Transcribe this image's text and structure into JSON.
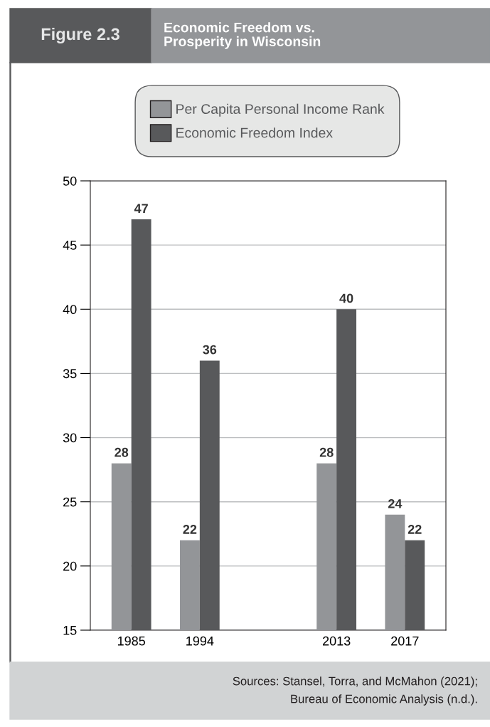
{
  "chart_data": {
    "type": "bar",
    "title": "Economic Freedom vs.\nProsperity in Wisconsin",
    "subtitle": "Figure 2.3",
    "categories": [
      "1985",
      "1994",
      null,
      "2013",
      "2017"
    ],
    "series": [
      {
        "name": "Per Capita Personal Income Rank",
        "color": "#939598",
        "values": [
          28,
          22,
          null,
          28,
          24
        ]
      },
      {
        "name": "Economic Freedom Index",
        "color": "#58595b",
        "values": [
          47,
          36,
          null,
          40,
          22
        ]
      }
    ],
    "ylim": [
      15,
      50
    ],
    "yticks": [
      15,
      20,
      25,
      30,
      35,
      40,
      45,
      50
    ],
    "grid": "y",
    "legend": "top",
    "data_labels": true,
    "annotations": [
      "Sources: Stansel, Torra, and McMahon (2021);",
      "Bureau of Economic Analysis (n.d.)."
    ]
  }
}
